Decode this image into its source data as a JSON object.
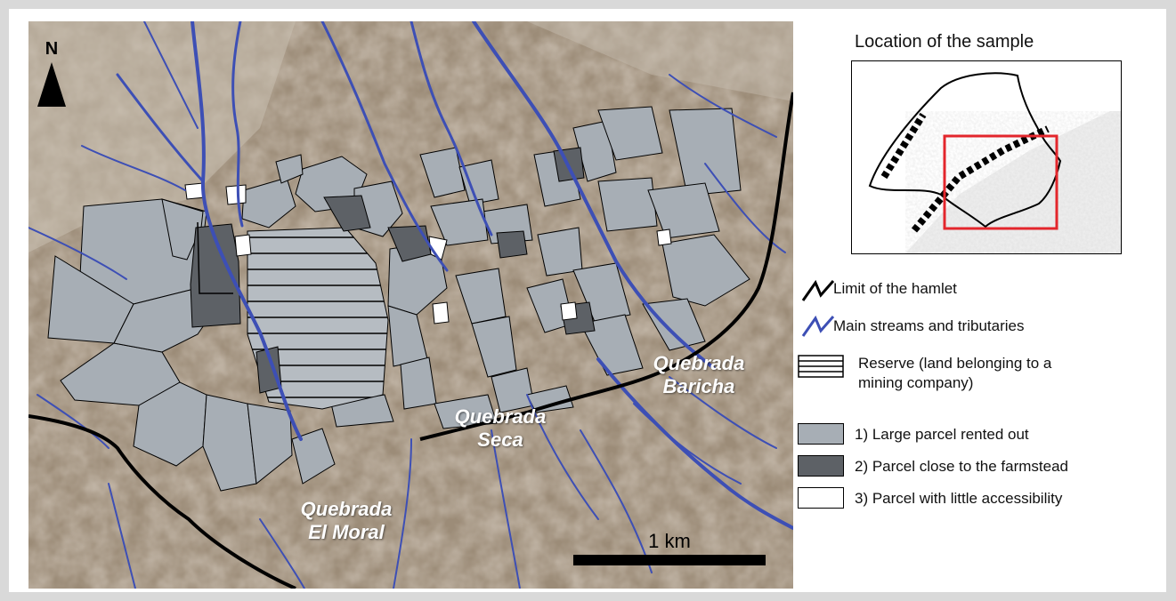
{
  "map": {
    "north_label": "N",
    "scale_label": "1 km",
    "place_labels": [
      {
        "line1": "Quebrada",
        "line2": "Baricha"
      },
      {
        "line1": "Quebrada",
        "line2": "Seca"
      },
      {
        "line1": "Quebrada",
        "line2": "El Moral"
      }
    ],
    "colors": {
      "terrain": "#9c8c78",
      "terrain_light": "#c8bfb1",
      "stream": "#3d4fb5",
      "boundary": "#000000",
      "large_parcel": "#a7aeb5",
      "close_parcel": "#5d6166",
      "little_access_parcel": "#ffffff"
    }
  },
  "inset": {
    "title": "Location of the sample",
    "highlight_color": "#e3262c"
  },
  "legend": {
    "items": [
      {
        "icon": "black-boundary-line-icon",
        "label": "Limit of the hamlet"
      },
      {
        "icon": "blue-stream-line-icon",
        "label": "Main streams and tributaries"
      },
      {
        "icon": "hatched-reserve-swatch",
        "label_line1": "Reserve (land belonging to a",
        "label_line2": "mining company)"
      },
      {
        "icon": "light-gray-swatch",
        "label": "1) Large parcel rented out"
      },
      {
        "icon": "dark-gray-swatch",
        "label": "2) Parcel close to the farmstead"
      },
      {
        "icon": "white-swatch",
        "label": "3) Parcel with little accessibility"
      }
    ]
  }
}
